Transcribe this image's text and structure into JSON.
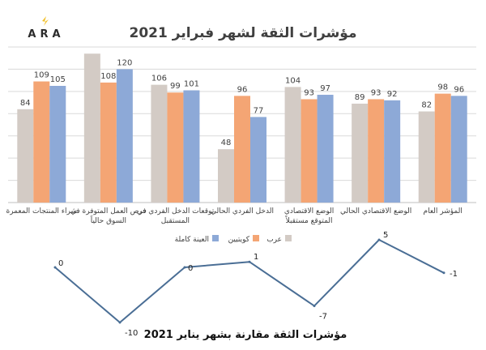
{
  "logo_text": "ARA",
  "colors": {
    "arab": "#D3CBC5",
    "kuwaiti": "#F4A574",
    "full": "#8DA9D7",
    "line": "#4A6E95",
    "grid": "#D9D9D9",
    "title": "#404040"
  },
  "chart_data": [
    {
      "type": "bar",
      "title": "مؤشرات الثقة لشهر فبراير 2021",
      "categories": [
        "المؤشر العام",
        "الوضع الاقتصادي الحالي",
        "الوضع الاقتصادي المتوقع مستقبلاً",
        "الدخل الفردي الحالي",
        "توقعات الدخل الفردي في المستقبل",
        "فرص العمل المتوفرة في السوق حالياً",
        "شراء المنتجات المعمرة"
      ],
      "series": [
        {
          "name": "عرب",
          "values": [
            82,
            89,
            104,
            48,
            106,
            134,
            84
          ],
          "labels": [
            "82",
            "89",
            "104",
            "48",
            "106",
            "",
            "84"
          ]
        },
        {
          "name": "كويتيين",
          "values": [
            98,
            93,
            93,
            96,
            99,
            108,
            109
          ],
          "labels": [
            "98",
            "93",
            "93",
            "96",
            "99",
            "108",
            "109"
          ]
        },
        {
          "name": "العينة كاملة",
          "values": [
            96,
            92,
            97,
            77,
            101,
            120,
            105
          ],
          "labels": [
            "96",
            "92",
            "97",
            "77",
            "101",
            "120",
            "105"
          ]
        }
      ],
      "legend_position": "bottom",
      "grid": true,
      "ylim": [
        0,
        140
      ]
    },
    {
      "type": "line",
      "title": "مؤشرات الثقة مقارنة بشهر يناير 2021",
      "categories": [
        "شراء المنتجات المعمرة",
        "فرص العمل المتوفرة في السوق حالياً",
        "توقعات الدخل الفردي في المستقبل",
        "الدخل الفردي الحالي",
        "الوضع الاقتصادي المتوقع مستقبلاً",
        "الوضع الاقتصادي الحالي",
        "المؤشر العام"
      ],
      "values": [
        0,
        -10,
        0,
        1,
        -7,
        5,
        -1
      ],
      "labels": [
        "0",
        "-10",
        "0",
        "1",
        "-7",
        "5",
        "-1"
      ],
      "ylim": [
        -10,
        5
      ]
    }
  ]
}
